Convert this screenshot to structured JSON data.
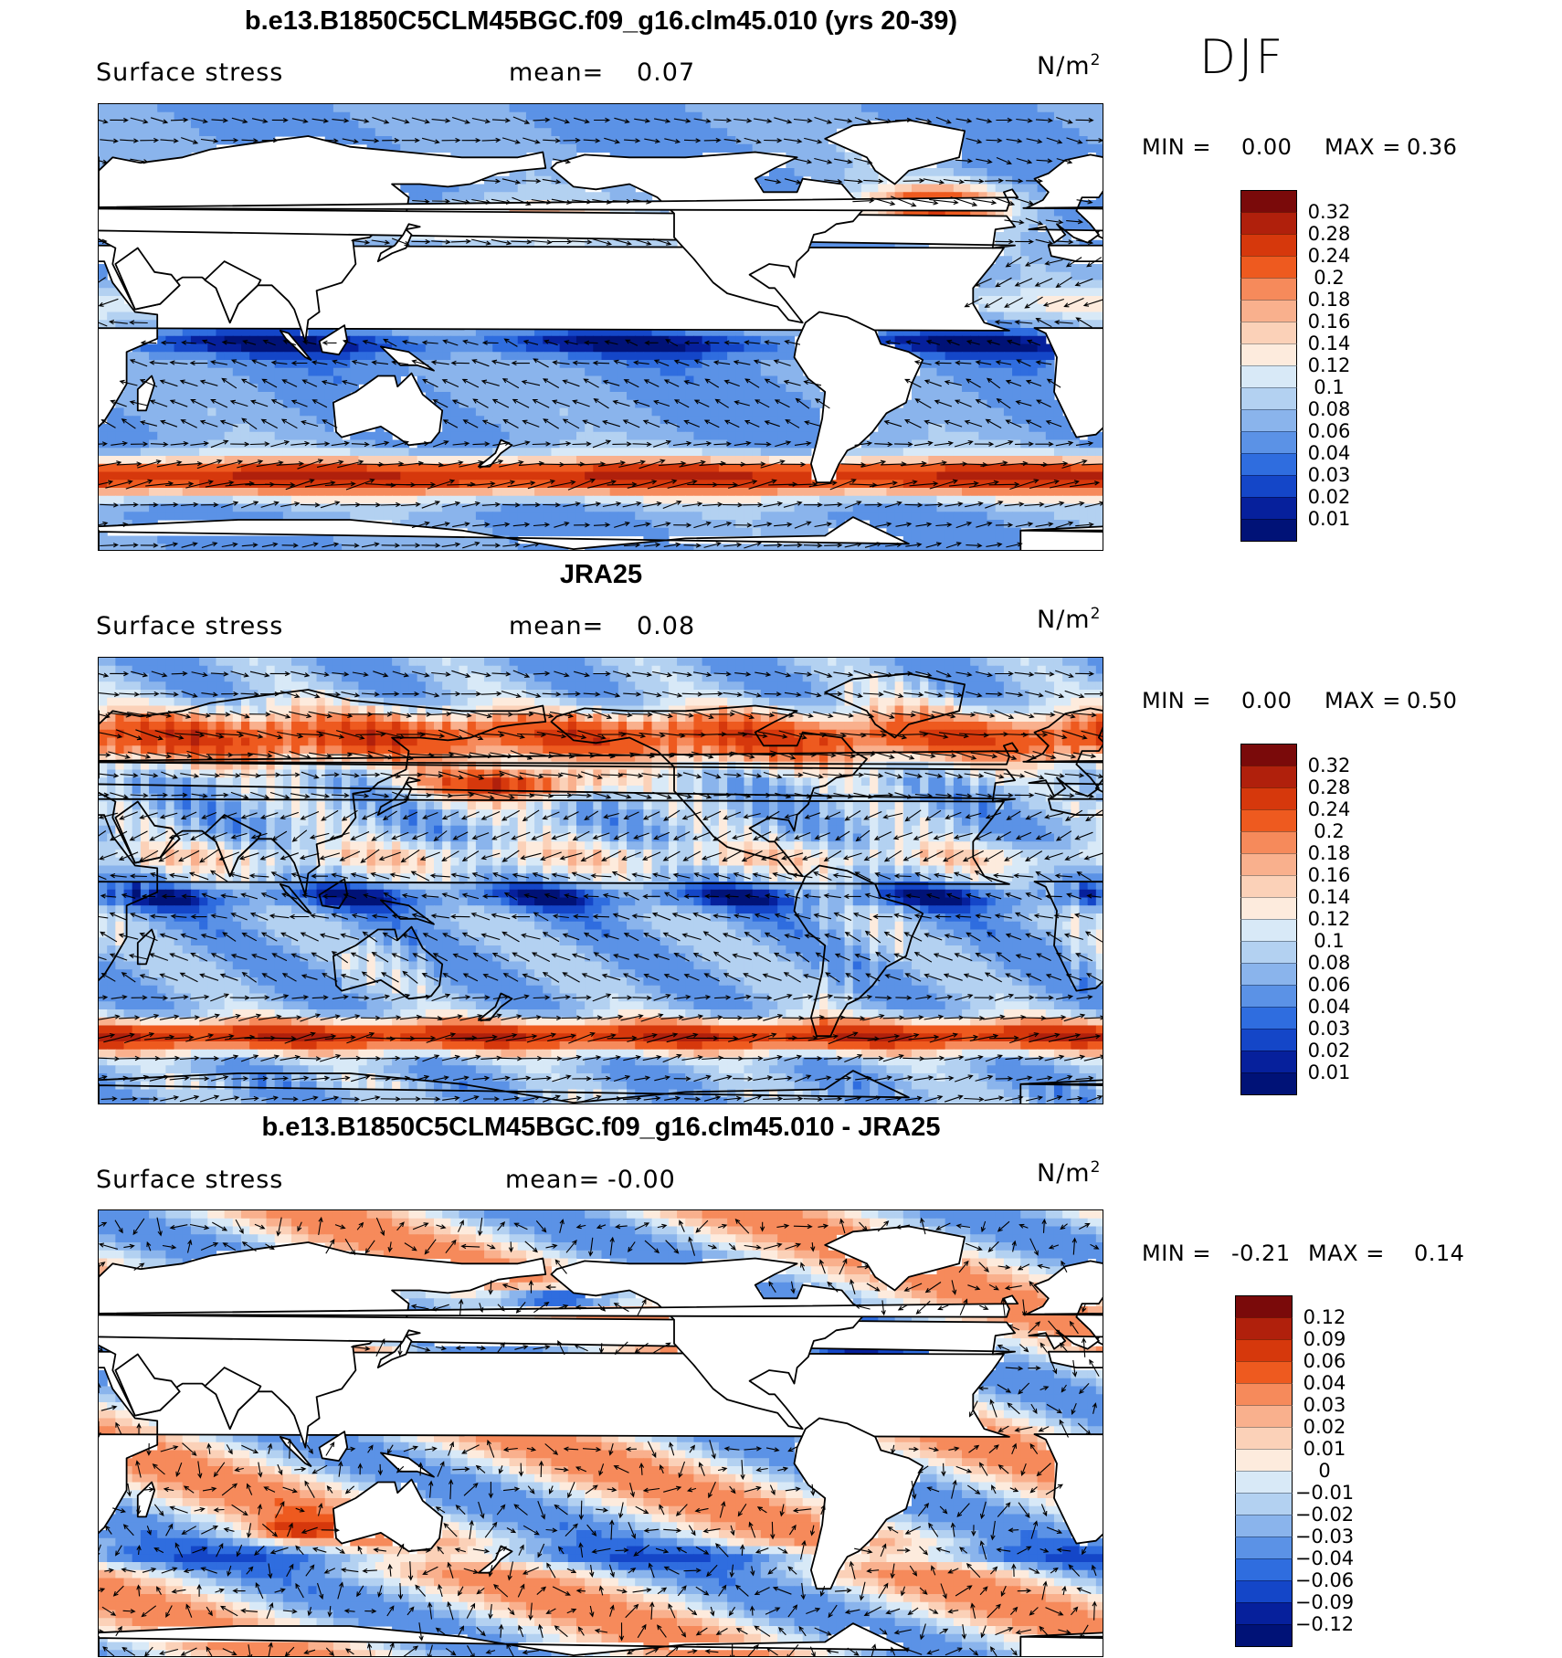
{
  "season": "DJF",
  "panels": [
    {
      "id": "model",
      "title": "b.e13.B1850C5CLM45BGC.f09_g16.clm45.010 (yrs 20-39)",
      "variable": "Surface stress",
      "mean_label": "mean=",
      "mean_value": "0.07",
      "units": "N/m",
      "units_sup": "2",
      "min_label": "MIN =",
      "min_value": "0.00",
      "max_label": "MAX =",
      "max_value": "0.36",
      "colorbar_labels": [
        "0.32",
        "0.28",
        "0.24",
        "0.2",
        "0.18",
        "0.16",
        "0.14",
        "0.12",
        "0.1",
        "0.08",
        "0.06",
        "0.04",
        "0.03",
        "0.02",
        "0.01"
      ],
      "colorbar_colors": [
        "#7a0a0a",
        "#b0200c",
        "#d6380c",
        "#ee5a1f",
        "#f68a5b",
        "#f9b08d",
        "#fbd1b8",
        "#fdebdd",
        "#d8e9f7",
        "#b3d1f1",
        "#8ab4ec",
        "#5b92e6",
        "#2f6ddf",
        "#1446c8",
        "#06209c",
        "#001277"
      ],
      "colormap": "model"
    },
    {
      "id": "obs",
      "title": "JRA25",
      "variable": "Surface stress",
      "mean_label": "mean=",
      "mean_value": "0.08",
      "units": "N/m",
      "units_sup": "2",
      "min_label": "MIN =",
      "min_value": "0.00",
      "max_label": "MAX =",
      "max_value": "0.50",
      "colorbar_labels": [
        "0.32",
        "0.28",
        "0.24",
        "0.2",
        "0.18",
        "0.16",
        "0.14",
        "0.12",
        "0.1",
        "0.08",
        "0.06",
        "0.04",
        "0.03",
        "0.02",
        "0.01"
      ],
      "colorbar_colors": [
        "#7a0a0a",
        "#b0200c",
        "#d6380c",
        "#ee5a1f",
        "#f68a5b",
        "#f9b08d",
        "#fbd1b8",
        "#fdebdd",
        "#d8e9f7",
        "#b3d1f1",
        "#8ab4ec",
        "#5b92e6",
        "#2f6ddf",
        "#1446c8",
        "#06209c",
        "#001277"
      ],
      "colormap": "obs"
    },
    {
      "id": "diff",
      "title": "b.e13.B1850C5CLM45BGC.f09_g16.clm45.010 - JRA25",
      "variable": "Surface stress",
      "mean_label": "mean=",
      "mean_value": "-0.00",
      "units": "N/m",
      "units_sup": "2",
      "min_label": "MIN =",
      "min_value": "-0.21",
      "max_label": "MAX =",
      "max_value": "0.14",
      "colorbar_labels": [
        "0.12",
        "0.09",
        "0.06",
        "0.04",
        "0.03",
        "0.02",
        "0.01",
        "0",
        "-0.01",
        "-0.02",
        "-0.03",
        "-0.04",
        "-0.06",
        "-0.09",
        "-0.12"
      ],
      "colorbar_colors": [
        "#7a0a0a",
        "#b0200c",
        "#d6380c",
        "#ee5a1f",
        "#f68a5b",
        "#f9b08d",
        "#fbd1b8",
        "#fdebdd",
        "#d8e9f7",
        "#b3d1f1",
        "#8ab4ec",
        "#5b92e6",
        "#2f6ddf",
        "#1446c8",
        "#06209c",
        "#001277"
      ],
      "colormap": "diff"
    }
  ]
}
